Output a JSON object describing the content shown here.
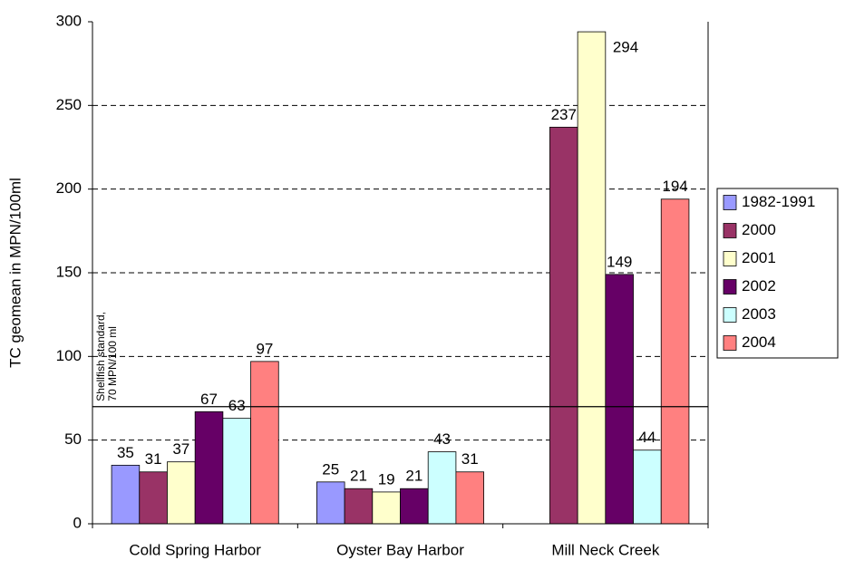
{
  "chart_data": {
    "type": "bar",
    "y_label": "TC geomean in MPN/100ml",
    "categories": [
      "Cold Spring Harbor",
      "Oyster Bay Harbor",
      "Mill Neck Creek"
    ],
    "series": [
      {
        "name": "1982-1991",
        "color": "#9999ff",
        "values": [
          35,
          25,
          null
        ]
      },
      {
        "name": "2000",
        "color": "#993366",
        "values": [
          31,
          21,
          237
        ]
      },
      {
        "name": "2001",
        "color": "#ffffcc",
        "values": [
          37,
          19,
          294
        ]
      },
      {
        "name": "2002",
        "color": "#660066",
        "values": [
          67,
          21,
          149
        ]
      },
      {
        "name": "2003",
        "color": "#ccffff",
        "values": [
          63,
          43,
          44
        ]
      },
      {
        "name": "2004",
        "color": "#ff8080",
        "values": [
          97,
          31,
          194
        ]
      }
    ],
    "ylim": [
      0,
      300
    ],
    "yticks": [
      0,
      50,
      100,
      150,
      200,
      250,
      300
    ],
    "grid": true,
    "reference_line": {
      "value": 70,
      "label": [
        "Shellfish standard,",
        "70 MPN/100 ml"
      ]
    },
    "legend": "right"
  }
}
